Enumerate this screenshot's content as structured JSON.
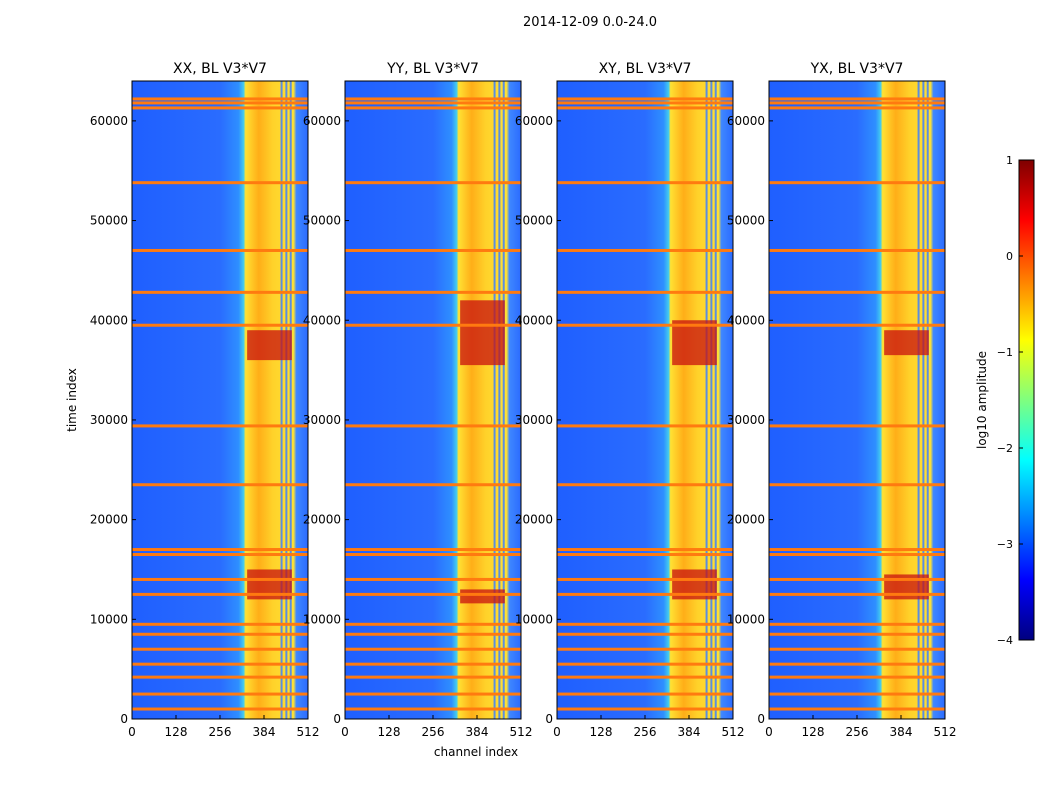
{
  "chart_data": {
    "type": "heatmap",
    "title": "2014-12-09 0.0-24.0",
    "xlabel": "channel index",
    "ylabel": "time index",
    "xlim": [
      0,
      512
    ],
    "ylim": [
      0,
      64000
    ],
    "x_ticks": [
      0,
      128,
      256,
      384,
      512
    ],
    "y_ticks": [
      0,
      10000,
      20000,
      30000,
      40000,
      50000,
      60000
    ],
    "panels": [
      {
        "title": "XX, BL V3*V7",
        "strong_band_rows": [
          12000,
          15000,
          36000,
          39000
        ]
      },
      {
        "title": "YY, BL V3*V7",
        "strong_band_rows": [
          11600,
          13000,
          35500,
          42000
        ]
      },
      {
        "title": "XY, BL V3*V7",
        "strong_band_rows": [
          12000,
          15000,
          35500,
          40000
        ]
      },
      {
        "title": "YX, BL V3*V7",
        "strong_band_rows": [
          12000,
          14500,
          36500,
          39000
        ]
      }
    ],
    "horizontal_rfi_rows": [
      1000,
      2500,
      4200,
      5500,
      7000,
      8500,
      9500,
      12500,
      14000,
      16500,
      17000,
      23500,
      29400,
      39500,
      42800,
      47000,
      53800,
      61300,
      61800,
      62200
    ],
    "bright_channel_range": [
      330,
      470
    ],
    "colorbar": {
      "label": "log10 amplitude",
      "min": -4,
      "max": 1,
      "ticks": [
        "1",
        "0",
        "−1",
        "−2",
        "−3",
        "−4"
      ],
      "colormap": [
        "#00007f",
        "#0000ff",
        "#007fff",
        "#00ffff",
        "#7fff7f",
        "#ffff00",
        "#ff7f00",
        "#ff0000",
        "#7f0000"
      ]
    }
  }
}
